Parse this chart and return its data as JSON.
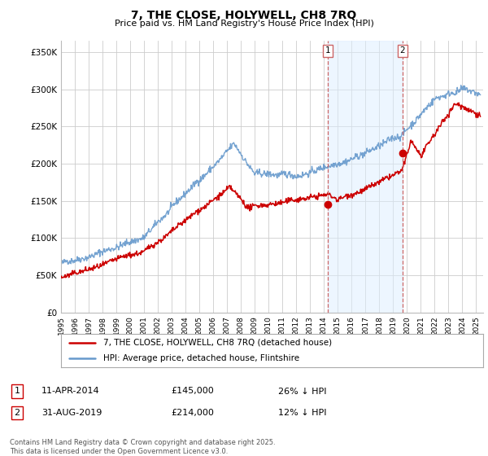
{
  "title": "7, THE CLOSE, HOLYWELL, CH8 7RQ",
  "subtitle": "Price paid vs. HM Land Registry's House Price Index (HPI)",
  "ylabel_ticks": [
    "£0",
    "£50K",
    "£100K",
    "£150K",
    "£200K",
    "£250K",
    "£300K",
    "£350K"
  ],
  "ytick_vals": [
    0,
    50000,
    100000,
    150000,
    200000,
    250000,
    300000,
    350000
  ],
  "ylim": [
    0,
    365000
  ],
  "xlim_start": 1995.0,
  "xlim_end": 2025.5,
  "vline1_x": 2014.27,
  "vline2_x": 2019.66,
  "sale1_date": "11-APR-2014",
  "sale1_price": "£145,000",
  "sale1_hpi": "26% ↓ HPI",
  "sale2_date": "31-AUG-2019",
  "sale2_price": "£214,000",
  "sale2_hpi": "12% ↓ HPI",
  "legend_line1": "7, THE CLOSE, HOLYWELL, CH8 7RQ (detached house)",
  "legend_line2": "HPI: Average price, detached house, Flintshire",
  "footer": "Contains HM Land Registry data © Crown copyright and database right 2025.\nThis data is licensed under the Open Government Licence v3.0.",
  "line_color_red": "#cc0000",
  "line_color_blue": "#6699cc",
  "vline_color": "#cc6666",
  "background_color": "#ffffff",
  "grid_color": "#cccccc"
}
